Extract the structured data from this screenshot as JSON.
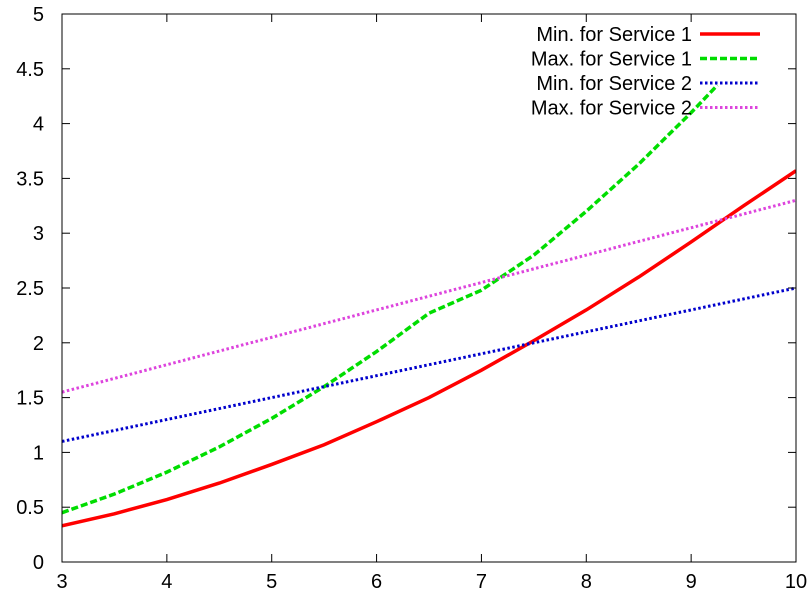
{
  "chart_data": {
    "type": "line",
    "title": "",
    "xlabel": "",
    "ylabel": "",
    "xlim": [
      3,
      10
    ],
    "ylim": [
      0,
      5
    ],
    "x_ticks": [
      3,
      4,
      5,
      6,
      7,
      8,
      9,
      10
    ],
    "y_ticks": [
      0,
      0.5,
      1,
      1.5,
      2,
      2.5,
      3,
      3.5,
      4,
      4.5,
      5
    ],
    "legend_position": "top-right",
    "grid": false,
    "series": [
      {
        "name": "Min. for Service 1",
        "color": "#ff0000",
        "style": "solid",
        "x": [
          3,
          3.5,
          4,
          4.5,
          5,
          5.5,
          6,
          6.5,
          7,
          7.5,
          8,
          8.5,
          9,
          9.5,
          10
        ],
        "y": [
          0.33,
          0.44,
          0.57,
          0.72,
          0.89,
          1.07,
          1.28,
          1.5,
          1.75,
          2.02,
          2.3,
          2.6,
          2.92,
          3.25,
          3.57
        ]
      },
      {
        "name": "Max. for Service 1",
        "color": "#00dd00",
        "style": "dashed",
        "x": [
          3,
          3.5,
          4,
          4.5,
          5,
          5.5,
          6,
          6.5,
          7,
          7.25,
          7.5,
          8,
          8.5,
          9,
          9.25
        ],
        "y": [
          0.45,
          0.62,
          0.82,
          1.05,
          1.31,
          1.6,
          1.92,
          2.27,
          2.48,
          2.64,
          2.8,
          3.2,
          3.63,
          4.1,
          4.35
        ]
      },
      {
        "name": "Min. for Service 2",
        "color": "#0000cc",
        "style": "dotted",
        "x": [
          3,
          10
        ],
        "y": [
          1.1,
          2.5
        ]
      },
      {
        "name": "Max. for Service 2",
        "color": "#dd44dd",
        "style": "dotted",
        "x": [
          3,
          10
        ],
        "y": [
          1.55,
          3.3
        ]
      }
    ]
  }
}
